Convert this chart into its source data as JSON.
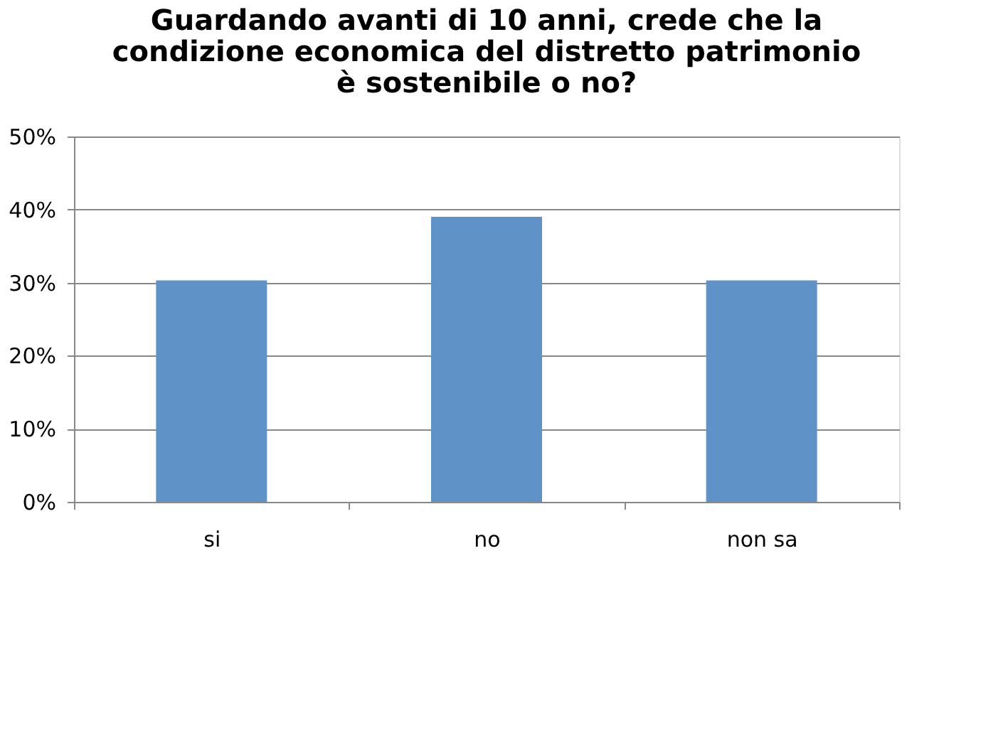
{
  "chart_data": {
    "type": "bar",
    "title": "Guardando avanti di 10 anni, crede che la condizione economica del distretto patrimonio è sostenibile o no?",
    "categories": [
      "si",
      "no",
      "non sa"
    ],
    "values": [
      30.3,
      39.0,
      30.3
    ],
    "color": "#5f93c8",
    "ylim": [
      0,
      50
    ],
    "yticks": [
      {
        "value": 0,
        "label": "0%"
      },
      {
        "value": 10,
        "label": "10%"
      },
      {
        "value": 20,
        "label": "20%"
      },
      {
        "value": 30,
        "label": "30%"
      },
      {
        "value": 40,
        "label": "40%"
      },
      {
        "value": 50,
        "label": "50%"
      }
    ],
    "grid": "y"
  }
}
